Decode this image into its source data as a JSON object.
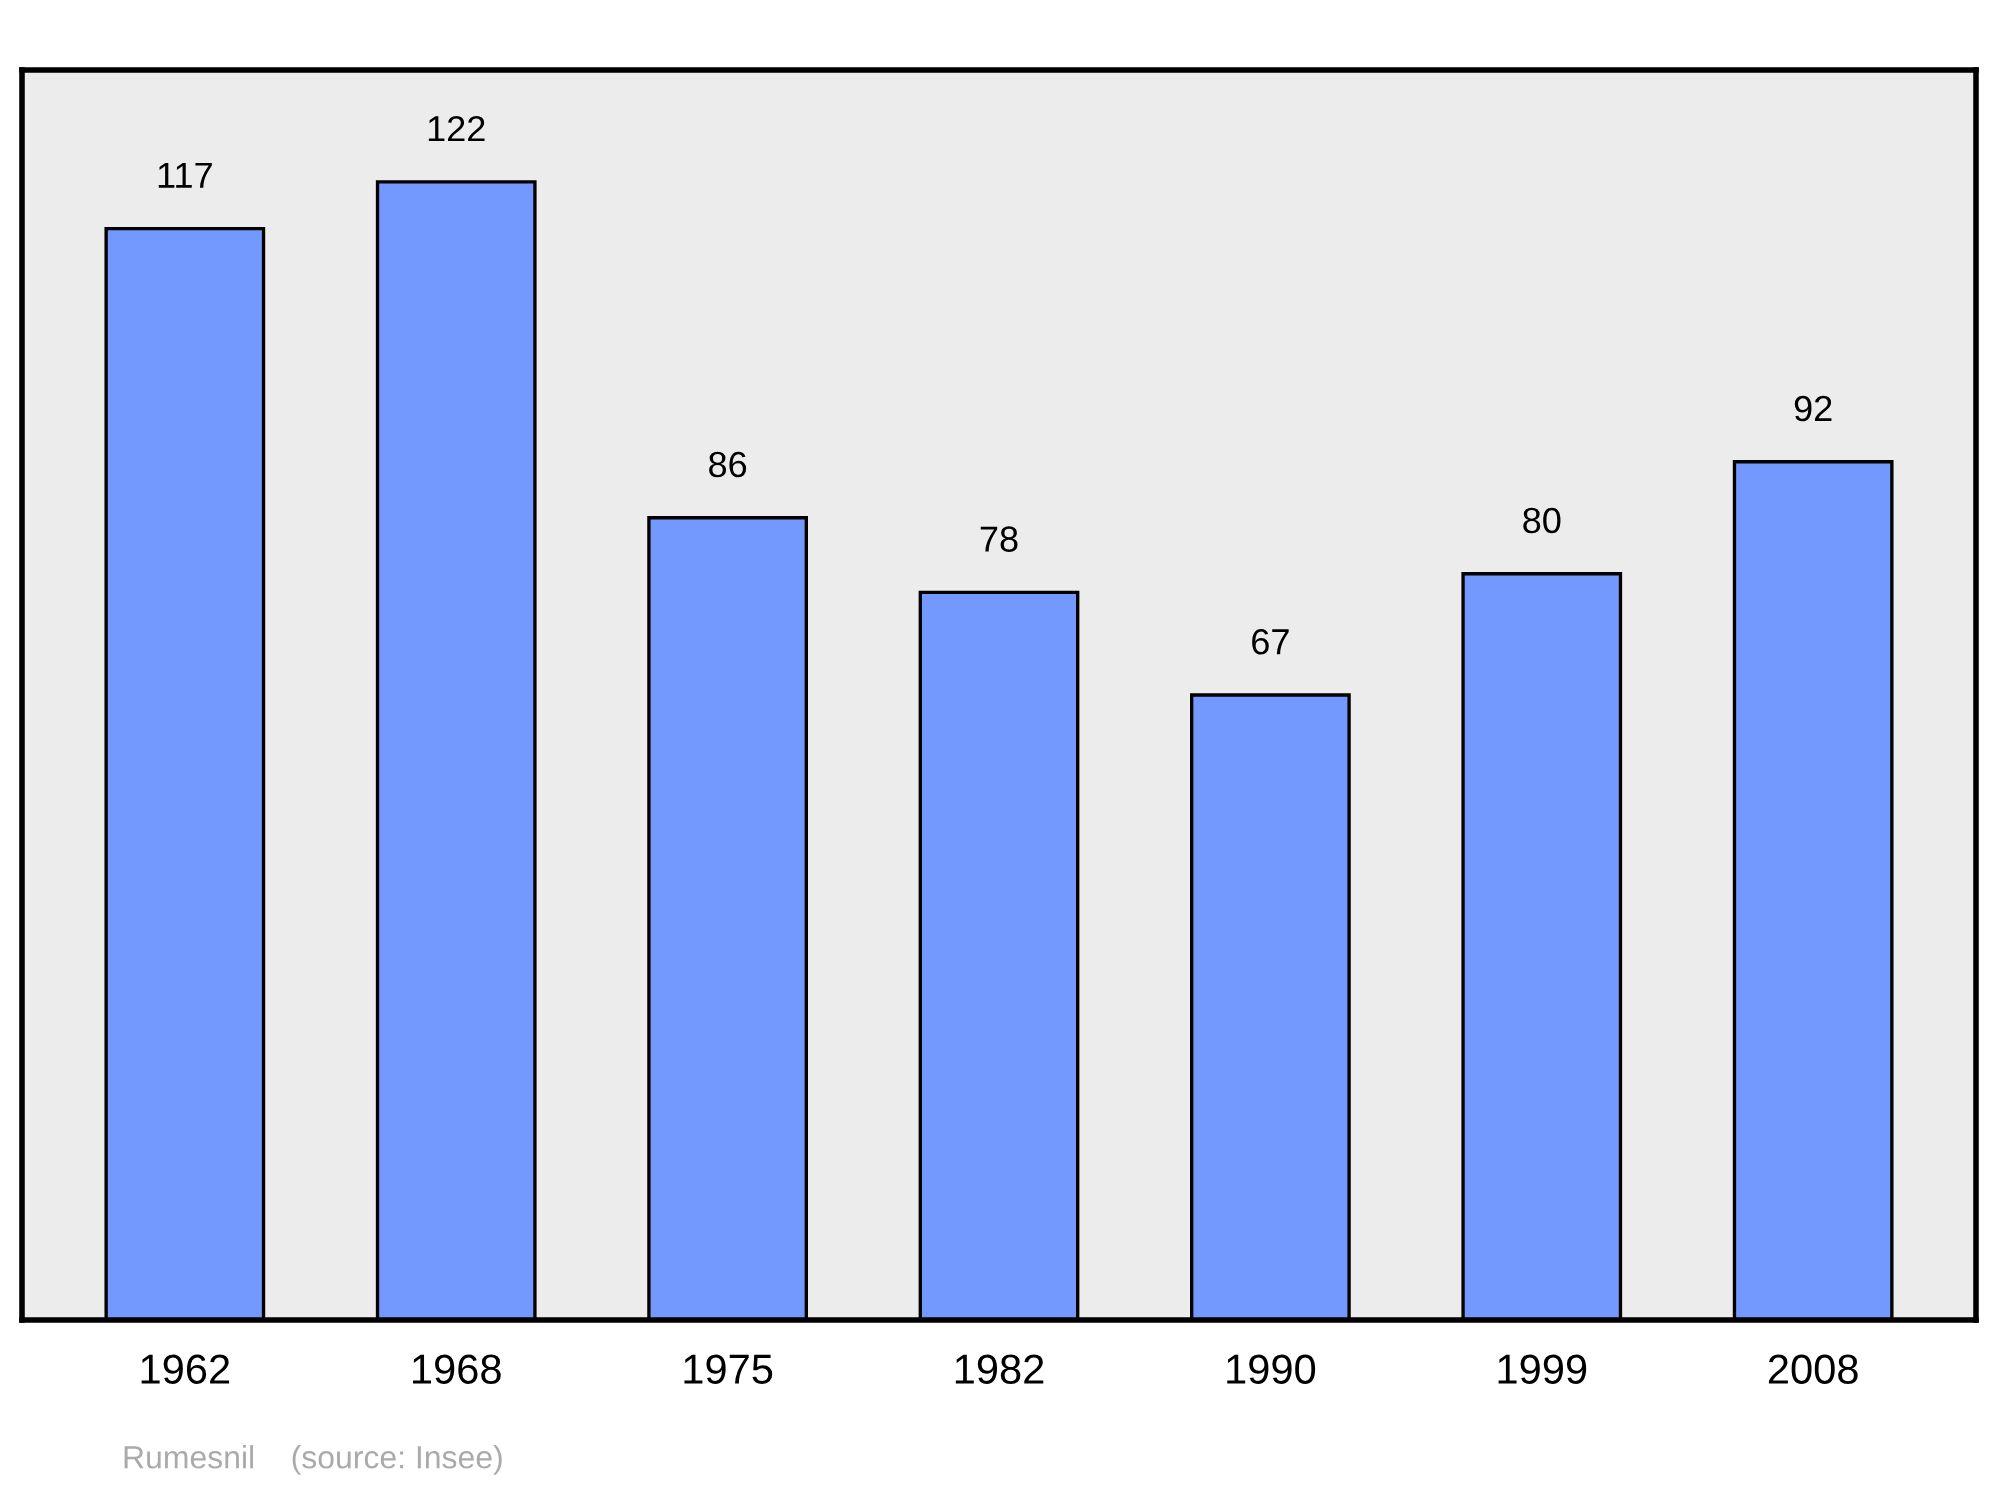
{
  "chart_data": {
    "type": "bar",
    "categories": [
      "1962",
      "1968",
      "1975",
      "1982",
      "1990",
      "1999",
      "2008"
    ],
    "values": [
      117,
      122,
      86,
      78,
      67,
      80,
      92
    ],
    "color": "#7399ff",
    "data_labels": true,
    "ylim": [
      0,
      134
    ],
    "tick_labels": "x",
    "grid": false,
    "legend": false,
    "annotations": [
      "Rumesnil    (source: Insee)"
    ]
  }
}
